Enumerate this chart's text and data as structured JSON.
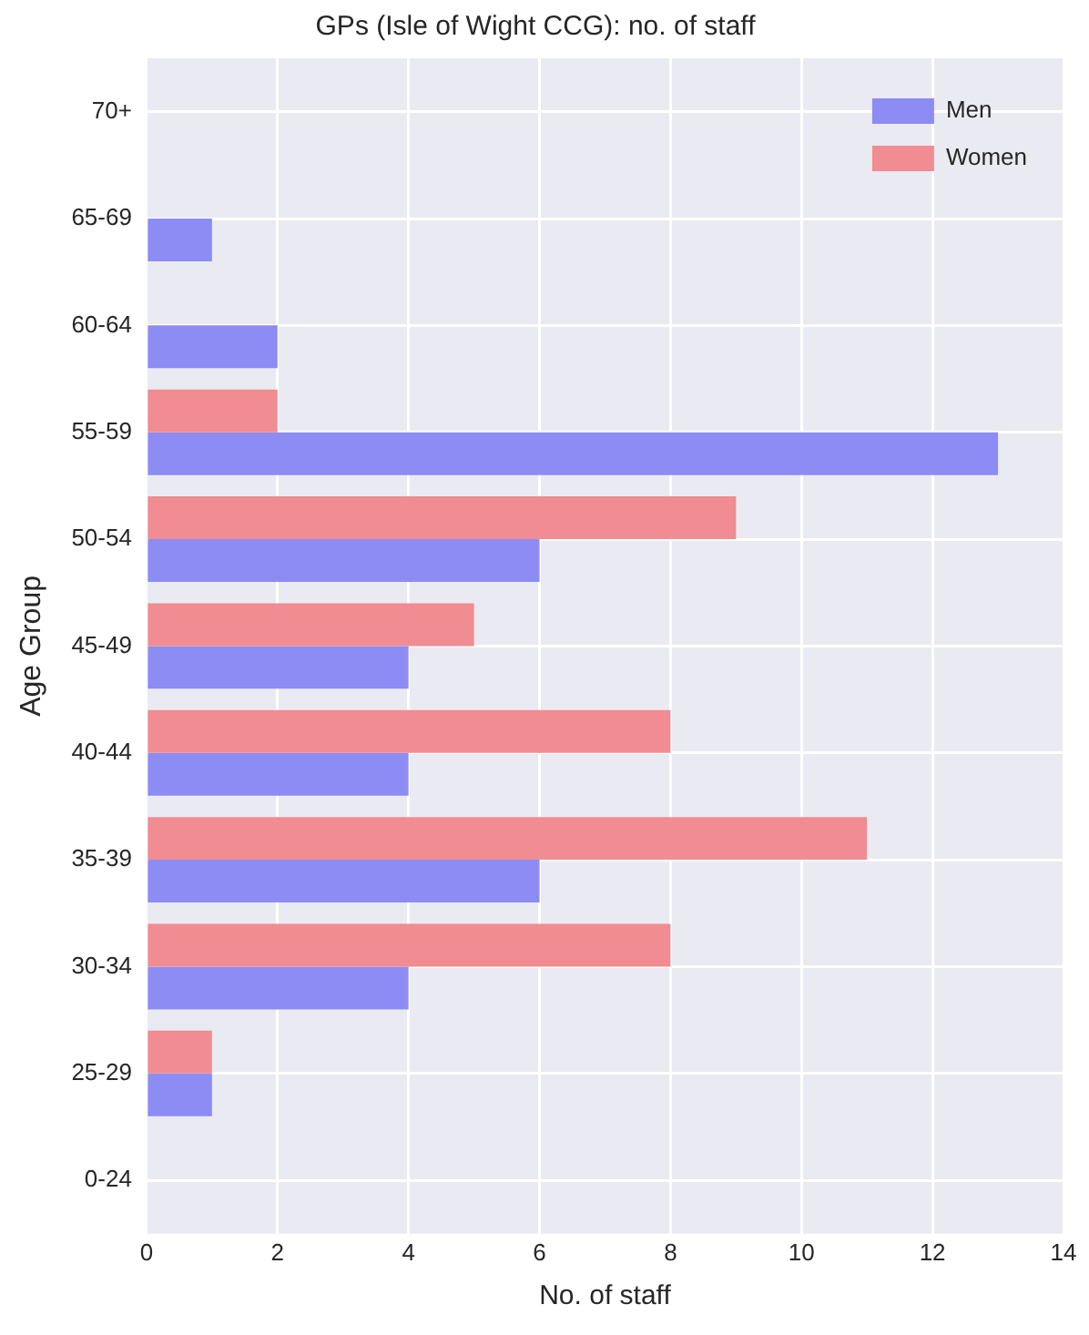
{
  "chart_data": {
    "type": "bar",
    "orientation": "horizontal",
    "title": "GPs (Isle of Wight CCG): no. of staff",
    "xlabel": "No. of staff",
    "ylabel": "Age Group",
    "categories": [
      "70+",
      "65-69",
      "60-64",
      "55-59",
      "50-54",
      "45-49",
      "40-44",
      "35-39",
      "30-34",
      "25-29",
      "0-24"
    ],
    "series": [
      {
        "name": "Men",
        "color": "#8c8cf4",
        "values": [
          0,
          1,
          2,
          13,
          6,
          4,
          4,
          6,
          4,
          1,
          0
        ]
      },
      {
        "name": "Women",
        "color": "#f08c92",
        "values": [
          0,
          0,
          0,
          2,
          9,
          5,
          8,
          11,
          8,
          1,
          0
        ]
      }
    ],
    "xlim": [
      0,
      14
    ],
    "xticks": [
      0,
      2,
      4,
      6,
      8,
      10,
      12,
      14
    ],
    "grid": true,
    "legend": "top right"
  }
}
